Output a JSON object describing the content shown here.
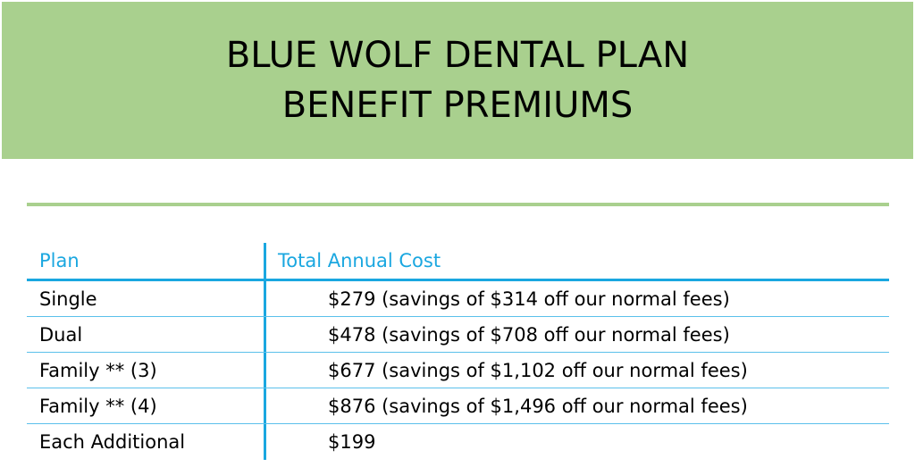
{
  "banner": {
    "title_line1": "BLUE WOLF DENTAL PLAN",
    "title_line2": "BENEFIT PREMIUMS"
  },
  "table": {
    "headers": {
      "plan": "Plan",
      "cost": "Total Annual Cost"
    },
    "rows": [
      {
        "plan": "Single",
        "cost": "$279 (savings of $314 off our normal fees)"
      },
      {
        "plan": "Dual",
        "cost": "$478 (savings of $708 off our normal fees)"
      },
      {
        "plan": "Family ** (3)",
        "cost": "$677 (savings of $1,102 off our normal fees)"
      },
      {
        "plan": "Family ** (4)",
        "cost": "$876 (savings of $1,496 off our normal fees)"
      },
      {
        "plan": "Each Additional",
        "cost": "$199"
      }
    ]
  },
  "colors": {
    "banner_green": "#a9d08e",
    "accent_blue": "#1aa7e0"
  }
}
